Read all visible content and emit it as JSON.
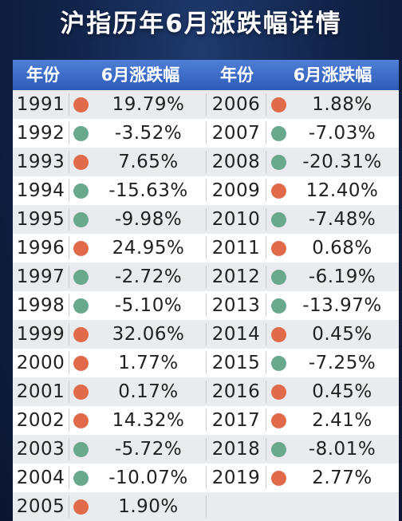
{
  "title": "沪指历年6月涨跌幅详情",
  "colors": {
    "up": "#e16a4a",
    "down": "#6aa88e",
    "header": "#3a66c4"
  },
  "chart_data": {
    "type": "table",
    "title": "沪指历年6月涨跌幅详情",
    "columns": [
      "年份",
      "6月涨跌幅",
      "年份",
      "6月涨跌幅"
    ],
    "rows": [
      {
        "year": "1991",
        "change": "19.79%",
        "value": 19.79
      },
      {
        "year": "1992",
        "change": "-3.52%",
        "value": -3.52
      },
      {
        "year": "1993",
        "change": "7.65%",
        "value": 7.65
      },
      {
        "year": "1994",
        "change": "-15.63%",
        "value": -15.63
      },
      {
        "year": "1995",
        "change": "-9.98%",
        "value": -9.98
      },
      {
        "year": "1996",
        "change": "24.95%",
        "value": 24.95
      },
      {
        "year": "1997",
        "change": "-2.72%",
        "value": -2.72
      },
      {
        "year": "1998",
        "change": "-5.10%",
        "value": -5.1
      },
      {
        "year": "1999",
        "change": "32.06%",
        "value": 32.06
      },
      {
        "year": "2000",
        "change": "1.77%",
        "value": 1.77
      },
      {
        "year": "2001",
        "change": "0.17%",
        "value": 0.17
      },
      {
        "year": "2002",
        "change": "14.32%",
        "value": 14.32
      },
      {
        "year": "2003",
        "change": "-5.72%",
        "value": -5.72
      },
      {
        "year": "2004",
        "change": "-10.07%",
        "value": -10.07
      },
      {
        "year": "2005",
        "change": "1.90%",
        "value": 1.9
      },
      {
        "year": "2006",
        "change": "1.88%",
        "value": 1.88
      },
      {
        "year": "2007",
        "change": "-7.03%",
        "value": -7.03
      },
      {
        "year": "2008",
        "change": "-20.31%",
        "value": -20.31
      },
      {
        "year": "2009",
        "change": "12.40%",
        "value": 12.4
      },
      {
        "year": "2010",
        "change": "-7.48%",
        "value": -7.48
      },
      {
        "year": "2011",
        "change": "0.68%",
        "value": 0.68
      },
      {
        "year": "2012",
        "change": "-6.19%",
        "value": -6.19
      },
      {
        "year": "2013",
        "change": "-13.97%",
        "value": -13.97
      },
      {
        "year": "2014",
        "change": "0.45%",
        "value": 0.45
      },
      {
        "year": "2015",
        "change": "-7.25%",
        "value": -7.25
      },
      {
        "year": "2016",
        "change": "0.45%",
        "value": 0.45
      },
      {
        "year": "2017",
        "change": "2.41%",
        "value": 2.41
      },
      {
        "year": "2018",
        "change": "-8.01%",
        "value": -8.01
      },
      {
        "year": "2019",
        "change": "2.77%",
        "value": 2.77
      }
    ]
  }
}
